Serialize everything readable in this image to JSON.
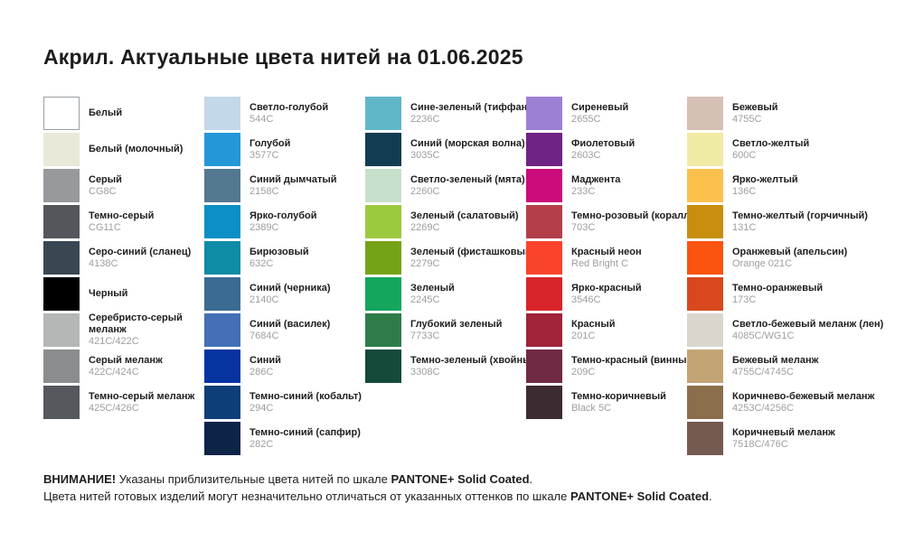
{
  "title": "Акрил. Актуальные цвета нитей на 01.06.2025",
  "columns": [
    {
      "items": [
        {
          "name": "Белый",
          "code": "",
          "hex": "#ffffff",
          "border": true
        },
        {
          "name": "Белый (молочный)",
          "code": "",
          "hex": "#e9e9da"
        },
        {
          "name": "Серый",
          "code": "CG8C",
          "hex": "#97999d"
        },
        {
          "name": "Темно-серый",
          "code": "CG11C",
          "hex": "#53565a"
        },
        {
          "name": "Серо-синий (сланец)",
          "code": "4138C",
          "hex": "#3a4753"
        },
        {
          "name": "Черный",
          "code": "",
          "hex": "#000000"
        },
        {
          "name": "Серебристо-серый\nмеланж",
          "code": "421C/422C",
          "hex": "#b5b7b6"
        },
        {
          "name": "Серый меланж",
          "code": "422C/424C",
          "hex": "#8a8c8d"
        },
        {
          "name": "Темно-серый меланж",
          "code": "425C/426C",
          "hex": "#55585c"
        }
      ]
    },
    {
      "items": [
        {
          "name": "Светло-голубой",
          "code": "544C",
          "hex": "#c3d8e8"
        },
        {
          "name": "Голубой",
          "code": "3577C",
          "hex": "#2497d8"
        },
        {
          "name": "Синий дымчатый",
          "code": "2158C",
          "hex": "#54788f"
        },
        {
          "name": "Ярко-голубой",
          "code": "2389C",
          "hex": "#0b8fc4"
        },
        {
          "name": "Бирюзовый",
          "code": "632C",
          "hex": "#0e8ba6"
        },
        {
          "name": "Синий (черника)",
          "code": "2140C",
          "hex": "#3a6b92"
        },
        {
          "name": "Синий (василек)",
          "code": "7684C",
          "hex": "#4470b6"
        },
        {
          "name": "Синий",
          "code": "286C",
          "hex": "#0733a1"
        },
        {
          "name": "Темно-синий (кобальт)",
          "code": "294C",
          "hex": "#0d3e78"
        },
        {
          "name": "Темно-синий (сапфир)",
          "code": "282C",
          "hex": "#0e2348"
        }
      ]
    },
    {
      "items": [
        {
          "name": "Сине-зеленый (тиффани)",
          "code": "2236C",
          "hex": "#5fb7c8"
        },
        {
          "name": "Синий (морская волна)",
          "code": "3035C",
          "hex": "#123c51"
        },
        {
          "name": "Светло-зеленый (мята)",
          "code": "2260C",
          "hex": "#c7e0cb"
        },
        {
          "name": "Зеленый (салатовый)",
          "code": "2269C",
          "hex": "#9cca3f"
        },
        {
          "name": "Зеленый (фисташковый)",
          "code": "2279C",
          "hex": "#75a317"
        },
        {
          "name": "Зеленый",
          "code": "2245C",
          "hex": "#13a65c"
        },
        {
          "name": "Глубокий зеленый",
          "code": "7733C",
          "hex": "#2e7d48"
        },
        {
          "name": "Темно-зеленый (хвойный)",
          "code": "3308C",
          "hex": "#15493b"
        }
      ]
    },
    {
      "items": [
        {
          "name": "Сиреневый",
          "code": "2655C",
          "hex": "#9c80d4"
        },
        {
          "name": "Фиолетовый",
          "code": "2603C",
          "hex": "#6f2384"
        },
        {
          "name": "Маджента",
          "code": "233C",
          "hex": "#cb0c7a"
        },
        {
          "name": "Темно-розовый (коралл)",
          "code": "703C",
          "hex": "#b43f4b"
        },
        {
          "name": "Красный неон",
          "code": "Red Bright C",
          "hex": "#f9432c"
        },
        {
          "name": "Ярко-красный",
          "code": "3546C",
          "hex": "#d8252b"
        },
        {
          "name": "Красный",
          "code": "201C",
          "hex": "#a02339"
        },
        {
          "name": "Темно-красный (винный)",
          "code": "209C",
          "hex": "#702a44"
        },
        {
          "name": "Темно-коричневый",
          "code": "Black 5C",
          "hex": "#3c2b31"
        }
      ]
    },
    {
      "items": [
        {
          "name": "Бежевый",
          "code": "4755C",
          "hex": "#d5c0b5"
        },
        {
          "name": "Светло-желтый",
          "code": "600C",
          "hex": "#f0eba4"
        },
        {
          "name": "Ярко-желтый",
          "code": "136C",
          "hex": "#fbc14d"
        },
        {
          "name": "Темно-желтый (горчичный)",
          "code": "131C",
          "hex": "#c98e10"
        },
        {
          "name": "Оранжевый (апельсин)",
          "code": "Orange 021C",
          "hex": "#fb5310"
        },
        {
          "name": "Темно-оранжевый",
          "code": "173C",
          "hex": "#d8481d"
        },
        {
          "name": "Светло-бежевый меланж (лен)",
          "code": "4085C/WG1C",
          "hex": "#dad6ce"
        },
        {
          "name": "Бежевый меланж",
          "code": "4755C/4745C",
          "hex": "#c3a474"
        },
        {
          "name": "Коричнево-бежевый меланж",
          "code": "4253C/4256C",
          "hex": "#8b6f4c"
        },
        {
          "name": "Коричневый меланж",
          "code": "7518C/476C",
          "hex": "#745a50"
        }
      ]
    }
  ],
  "footer": {
    "line1": {
      "bold1": "ВНИМАНИЕ!",
      "text": " Указаны приблизительные цвета нитей по шкале ",
      "bold2": "PANTONE+ Solid Coated",
      "tail": "."
    },
    "line2": {
      "text": "Цвета нитей готовых изделий могут незначительно отличаться от указанных оттенков по шкале ",
      "bold": "PANTONE+ Solid Coated",
      "tail": "."
    }
  }
}
